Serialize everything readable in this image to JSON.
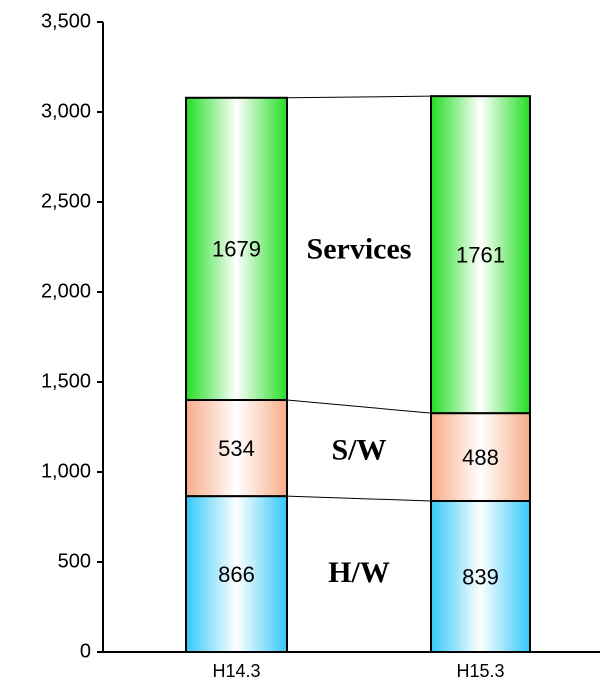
{
  "chart_data": {
    "type": "stacked_bar",
    "categories": [
      "H14.3",
      "H15.3"
    ],
    "series": [
      {
        "name": "H/W",
        "color": "#33c8f8",
        "values": [
          866,
          839
        ]
      },
      {
        "name": "S/W",
        "color": "#f8ac88",
        "values": [
          534,
          488
        ]
      },
      {
        "name": "Services",
        "color": "#22dd22",
        "values": [
          1679,
          1761
        ]
      }
    ],
    "ylim": [
      0,
      3500
    ],
    "yticks": [
      0,
      500,
      {
        "value": 1000,
        "label": "1,000"
      },
      {
        "value": 1500,
        "label": "1,500"
      },
      {
        "value": 2000,
        "label": "2,000"
      },
      {
        "value": 2500,
        "label": "2,500"
      },
      {
        "value": 3000,
        "label": "3,000"
      },
      {
        "value": 3500,
        "label": "3,500"
      }
    ]
  }
}
